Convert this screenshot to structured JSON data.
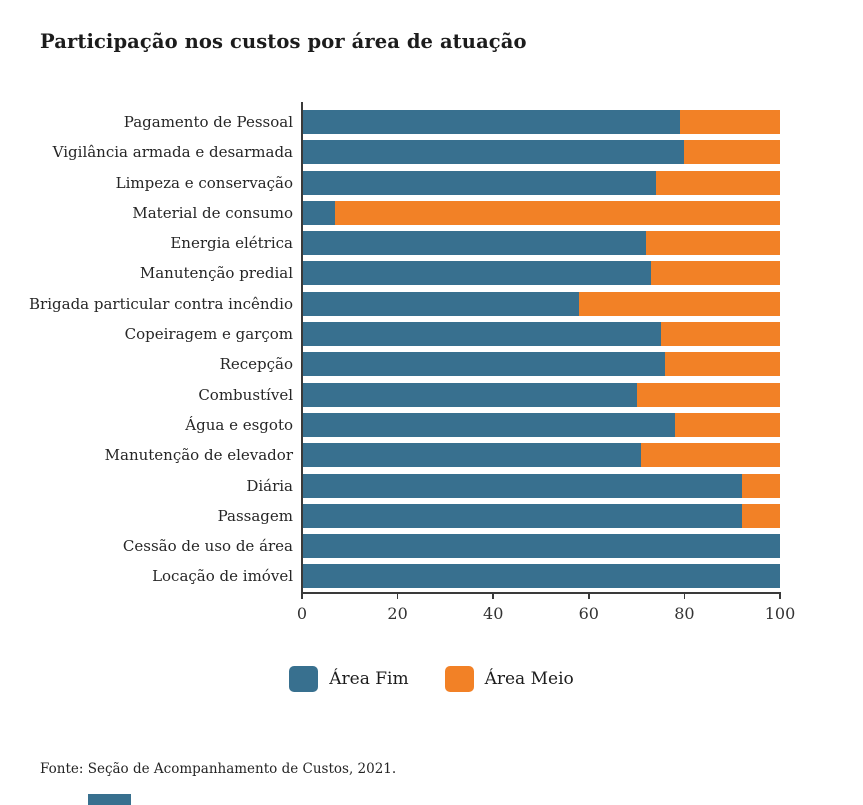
{
  "page": {
    "title": "Participação nos custos por área de atuação",
    "source": "Fonte: Seção de Acompanhamento de Custos, 2021."
  },
  "colors": {
    "area_fim": "#38708f",
    "area_meio": "#f28126",
    "axis": "#3a3a3a",
    "title_text": "#1c1c1c"
  },
  "chart_data": {
    "type": "bar",
    "orientation": "horizontal",
    "stacked": true,
    "title": "Participação nos custos por área de atuação",
    "xlabel": "",
    "ylabel": "",
    "xlim": [
      0,
      100
    ],
    "xticks": [
      0,
      20,
      40,
      60,
      80,
      100
    ],
    "grid": false,
    "legend_position": "bottom",
    "categories": [
      "Pagamento de Pessoal",
      "Vigilância armada e desarmada",
      "Limpeza e conservação",
      "Material de consumo",
      "Energia elétrica",
      "Manutenção predial",
      "Brigada particular contra incêndio",
      "Copeiragem e garçom",
      "Recepção",
      "Combustível",
      "Água e esgoto",
      "Manutenção de elevador",
      "Diária",
      "Passagem",
      "Cessão de uso de área",
      "Locação de imóvel"
    ],
    "series": [
      {
        "name": "Área Fim",
        "color": "#38708f",
        "values": [
          79,
          80,
          74,
          7,
          72,
          73,
          58,
          75,
          76,
          70,
          78,
          71,
          92,
          92,
          100,
          100
        ]
      },
      {
        "name": "Área Meio",
        "color": "#f28126",
        "values": [
          21,
          20,
          26,
          93,
          28,
          27,
          42,
          25,
          24,
          30,
          22,
          29,
          8,
          8,
          0,
          0
        ]
      }
    ]
  },
  "footer": {
    "source": "Fonte: Seção de Acompanhamento de Custos, 2021."
  }
}
